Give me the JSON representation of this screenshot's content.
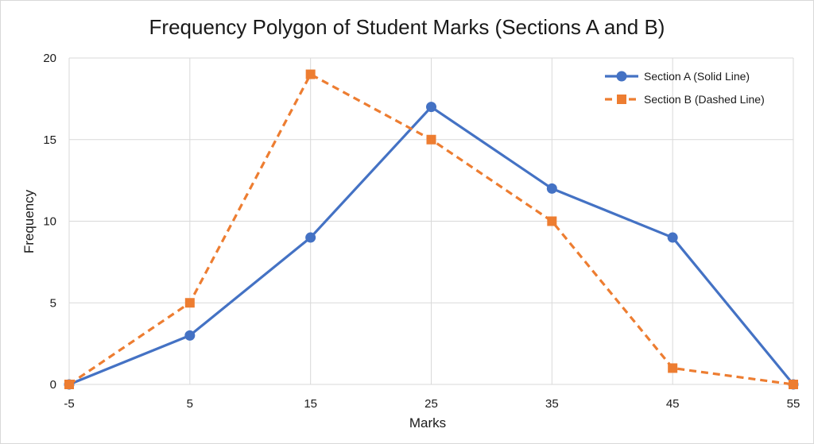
{
  "chart_data": {
    "type": "line",
    "title": "Frequency Polygon of Student Marks (Sections A and B)",
    "xlabel": "Marks",
    "ylabel": "Frequency",
    "x": [
      -5,
      5,
      15,
      25,
      35,
      45,
      55
    ],
    "x_tick_labels": [
      "-5",
      "5",
      "15",
      "25",
      "35",
      "45",
      "55"
    ],
    "y_ticks": [
      0,
      5,
      10,
      15,
      20
    ],
    "y_tick_labels": [
      "0",
      "5",
      "10",
      "15",
      "20"
    ],
    "xlim": [
      -5,
      55
    ],
    "ylim": [
      0,
      20
    ],
    "grid": "on",
    "legend_position": "top-right",
    "series": [
      {
        "name": "Section A (Solid Line)",
        "values": [
          0,
          3,
          9,
          17,
          12,
          9,
          0
        ],
        "color": "#4472C4",
        "line_style": "solid",
        "marker": "circle"
      },
      {
        "name": "Section B (Dashed Line)",
        "values": [
          0,
          5,
          19,
          15,
          10,
          1,
          0
        ],
        "color": "#ED7D31",
        "line_style": "dashed",
        "marker": "square"
      }
    ]
  }
}
